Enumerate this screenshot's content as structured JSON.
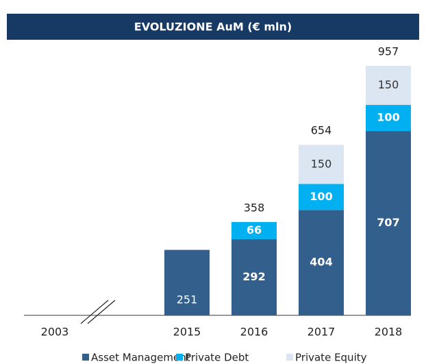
{
  "chart_data": {
    "type": "stacked_bar",
    "title": "EVOLUZIONE AuM (€ mln)",
    "categories": [
      "2003",
      "2015",
      "2016",
      "2017",
      "2018"
    ],
    "series": [
      {
        "name": "Asset Management",
        "color": "#335f8c",
        "values": [
          null,
          251,
          292,
          404,
          707
        ]
      },
      {
        "name": "Private Debt",
        "color": "#00b0f0",
        "values": [
          null,
          null,
          66,
          100,
          100
        ]
      },
      {
        "name": "Private Equity",
        "color": "#dce6f2",
        "values": [
          null,
          null,
          null,
          150,
          150
        ]
      }
    ],
    "totals": [
      null,
      null,
      358,
      654,
      957
    ]
  }
}
